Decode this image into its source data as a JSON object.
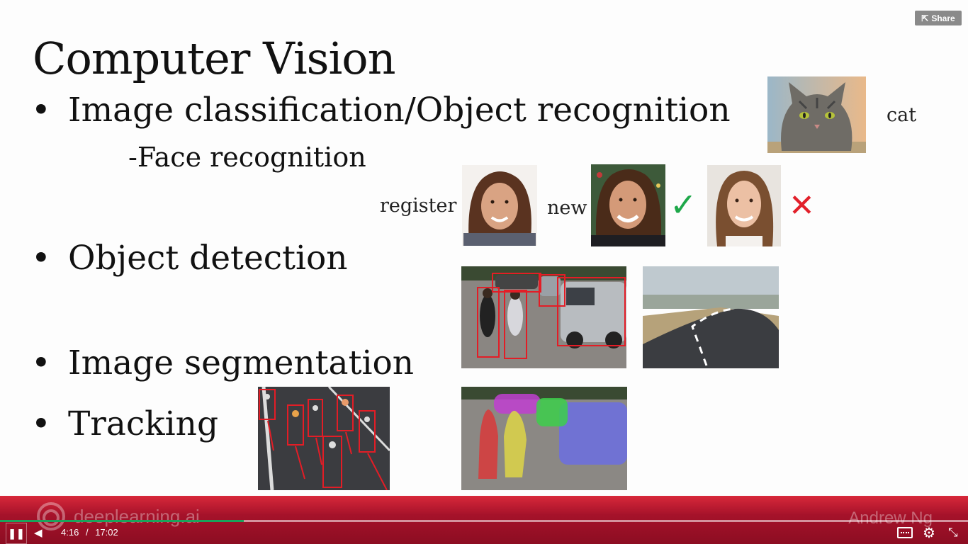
{
  "slide": {
    "title": "Computer Vision",
    "bullets": [
      "Image classification/Object recognition",
      "Object detection",
      "Image segmentation",
      "Tracking"
    ],
    "sub_bullet": "-Face recognition",
    "labels": {
      "cat": "cat",
      "register": "register",
      "new": "new"
    },
    "marks": {
      "check": "✓",
      "cross": "✕"
    }
  },
  "share": {
    "label": "Share",
    "icon": "share-icon"
  },
  "player": {
    "brand": "deeplearning.ai",
    "author": "Andrew Ng",
    "current_time": "4:16",
    "separator": "/",
    "duration": "17:02",
    "progress_fraction": 0.252,
    "icons": [
      "pause-icon",
      "volume-icon",
      "captions-icon",
      "settings-icon",
      "exit-fullscreen-icon"
    ],
    "colors": {
      "bar": "#b3152b",
      "progress": "#1aa35a"
    }
  }
}
